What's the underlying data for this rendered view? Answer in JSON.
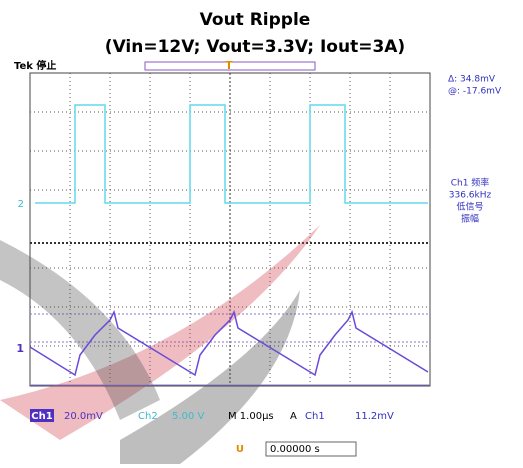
{
  "header": {
    "title": "Vout Ripple",
    "subtitle": "(Vin=12V; Vout=3.3V; Iout=3A)"
  },
  "scope": {
    "status": "Tek 停止",
    "trigger_marker": "T",
    "u_marker": "U",
    "ch2_marker": "2",
    "ch1_marker": "1"
  },
  "measurements": {
    "delta": "Δ: 34.8mV",
    "at": "@: -17.6mV",
    "meas_name": "Ch1 频率",
    "meas_value": "336.6kHz",
    "meas_note1": "低信号",
    "meas_note2": "振幅"
  },
  "footer": {
    "ch1": "Ch1",
    "ch1_scale": "20.0mV",
    "ch2": "Ch2",
    "ch2_scale": "5.00 V",
    "timebase": "M 1.00µs",
    "trig_mode": "A",
    "trig_src": "Ch1",
    "trig_level": "11.2mV",
    "u_label": "U",
    "position": "0.00000 s"
  }
}
